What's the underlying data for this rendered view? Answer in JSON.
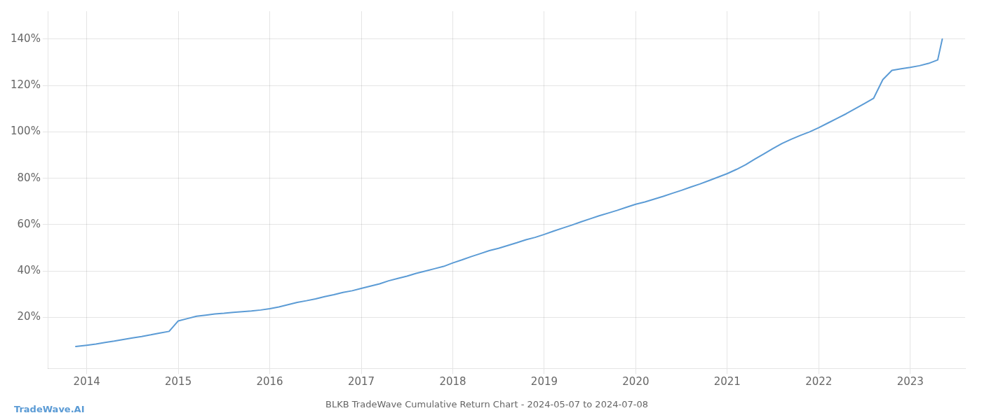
{
  "chart_data": {
    "type": "line",
    "title": "BLKB TradeWave Cumulative Return Chart - 2024-05-07 to 2024-07-08",
    "annotations": [
      "TradeWave.AI"
    ],
    "color": "#5b9bd5",
    "grid": true,
    "xlim": [
      2013.58,
      2023.6
    ],
    "xticks": [
      2014,
      2015,
      2016,
      2017,
      2018,
      2019,
      2020,
      2021,
      2022,
      2023
    ],
    "ylim": [
      -0.02,
      1.52
    ],
    "yticks": [
      {
        "value": 0.2,
        "label": "20%"
      },
      {
        "value": 0.4,
        "label": "40%"
      },
      {
        "value": 0.6,
        "label": "60%"
      },
      {
        "value": 0.8,
        "label": "80%"
      },
      {
        "value": 1.0,
        "label": "100%"
      },
      {
        "value": 1.2,
        "label": "120%"
      },
      {
        "value": 1.4,
        "label": "140%"
      }
    ],
    "x": [
      2013.88,
      2014.0,
      2014.1,
      2014.2,
      2014.3,
      2014.4,
      2014.5,
      2014.6,
      2014.7,
      2014.8,
      2014.9,
      2015.0,
      2015.1,
      2015.2,
      2015.3,
      2015.4,
      2015.5,
      2015.6,
      2015.7,
      2015.8,
      2015.9,
      2016.0,
      2016.1,
      2016.2,
      2016.3,
      2016.4,
      2016.5,
      2016.6,
      2016.7,
      2016.8,
      2016.9,
      2017.0,
      2017.1,
      2017.2,
      2017.3,
      2017.4,
      2017.5,
      2017.6,
      2017.7,
      2017.8,
      2017.9,
      2018.0,
      2018.1,
      2018.2,
      2018.3,
      2018.4,
      2018.5,
      2018.6,
      2018.7,
      2018.8,
      2018.9,
      2019.0,
      2019.1,
      2019.2,
      2019.3,
      2019.4,
      2019.5,
      2019.6,
      2019.7,
      2019.8,
      2019.9,
      2020.0,
      2020.1,
      2020.2,
      2020.3,
      2020.4,
      2020.5,
      2020.6,
      2020.7,
      2020.8,
      2020.9,
      2021.0,
      2021.1,
      2021.2,
      2021.3,
      2021.4,
      2021.5,
      2021.6,
      2021.7,
      2021.8,
      2021.9,
      2022.0,
      2022.1,
      2022.2,
      2022.3,
      2022.4,
      2022.5,
      2022.6,
      2022.7,
      2022.8,
      2022.9,
      2023.0,
      2023.1,
      2023.2,
      2023.3,
      2023.35
    ],
    "values": [
      0.075,
      0.08,
      0.085,
      0.092,
      0.098,
      0.105,
      0.112,
      0.118,
      0.125,
      0.133,
      0.14,
      0.185,
      0.195,
      0.205,
      0.21,
      0.215,
      0.218,
      0.222,
      0.225,
      0.228,
      0.232,
      0.238,
      0.245,
      0.255,
      0.265,
      0.272,
      0.28,
      0.29,
      0.298,
      0.308,
      0.315,
      0.325,
      0.335,
      0.345,
      0.358,
      0.368,
      0.378,
      0.39,
      0.4,
      0.41,
      0.42,
      0.435,
      0.448,
      0.462,
      0.475,
      0.488,
      0.498,
      0.51,
      0.522,
      0.535,
      0.545,
      0.558,
      0.572,
      0.585,
      0.598,
      0.612,
      0.625,
      0.638,
      0.65,
      0.662,
      0.675,
      0.688,
      0.698,
      0.71,
      0.722,
      0.735,
      0.748,
      0.762,
      0.775,
      0.79,
      0.805,
      0.82,
      0.838,
      0.858,
      0.882,
      0.905,
      0.928,
      0.95,
      0.968,
      0.985,
      1.0,
      1.018,
      1.038,
      1.058,
      1.078,
      1.1,
      1.122,
      1.145,
      1.225,
      1.265,
      1.272,
      1.278,
      1.285,
      1.295,
      1.31,
      1.4
    ]
  }
}
